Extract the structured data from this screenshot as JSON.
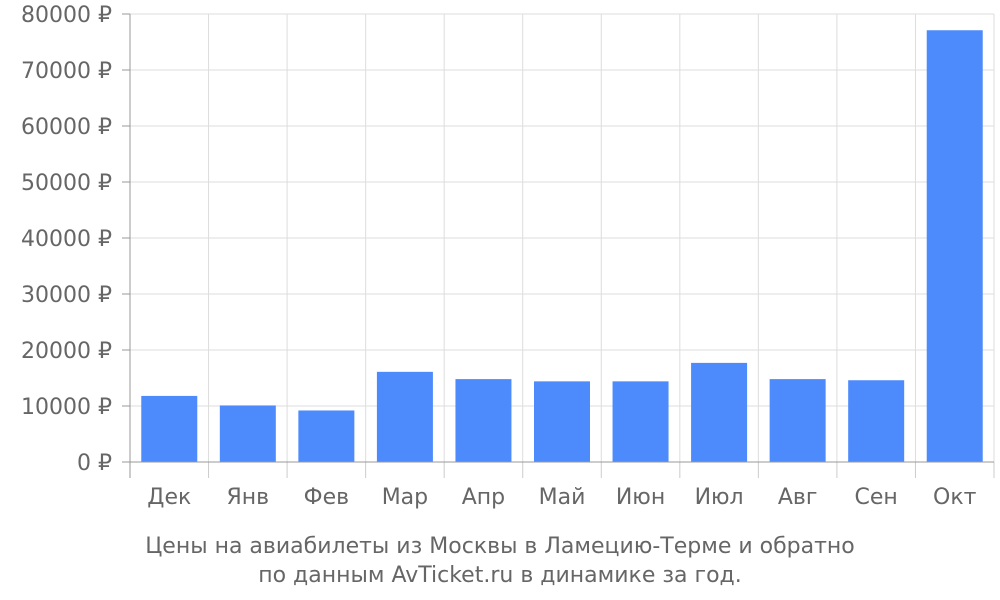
{
  "chart_data": {
    "type": "bar",
    "title": "",
    "xlabel": "",
    "ylabel": "",
    "categories": [
      "Дек",
      "Янв",
      "Фев",
      "Мар",
      "Апр",
      "Май",
      "Июн",
      "Июл",
      "Авг",
      "Сен",
      "Окт"
    ],
    "values": [
      11800,
      10100,
      9200,
      16100,
      14800,
      14400,
      14400,
      17700,
      14800,
      14600,
      77100
    ],
    "ylim": [
      0,
      80000
    ],
    "yticks": [
      0,
      10000,
      20000,
      30000,
      40000,
      50000,
      60000,
      70000,
      80000
    ],
    "ytick_labels": [
      "0 ₽",
      "10000 ₽",
      "20000 ₽",
      "30000 ₽",
      "40000 ₽",
      "50000 ₽",
      "60000 ₽",
      "70000 ₽",
      "80000 ₽"
    ],
    "grid": true,
    "legend": "none",
    "bar_color": "#4d8afc",
    "grid_color": "#dddddd",
    "axis_color": "#999999"
  },
  "caption": {
    "line1": "Цены на авиабилеты из Москвы в Ламецию-Терме и обратно",
    "line2": "по данным AvTicket.ru в динамике за год."
  }
}
